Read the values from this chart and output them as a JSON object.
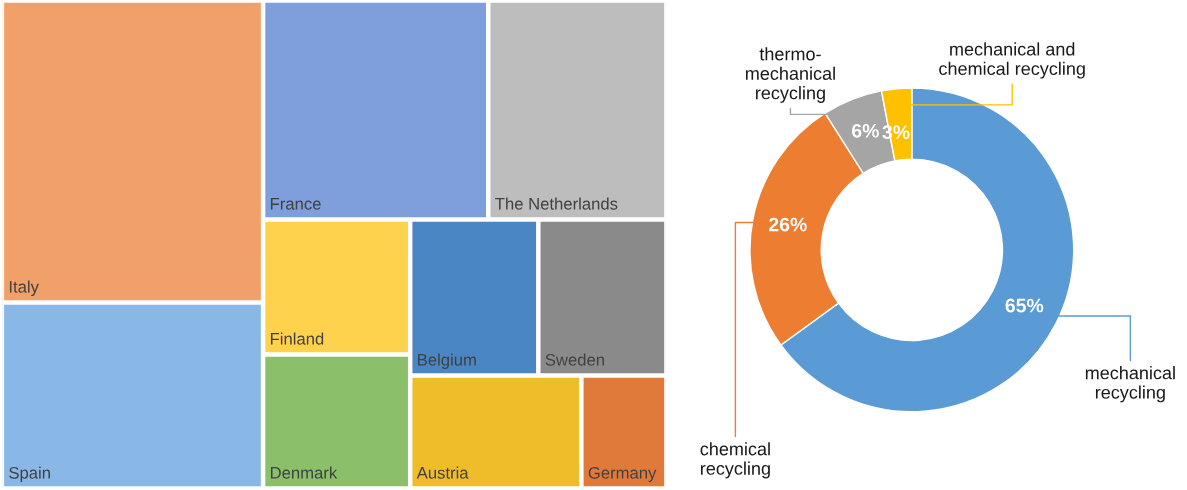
{
  "chart_data": [
    {
      "type": "other",
      "categories": [
        "Italy",
        "Spain",
        "France",
        "The Netherlands",
        "Finland",
        "Denmark",
        "Belgium",
        "Sweden",
        "Austria",
        "Germany"
      ],
      "colors": [
        "#f2a06a",
        "#8ab8e6",
        "#7f9fdc",
        "#bdbdbd",
        "#ffd24d",
        "#8cbf6a",
        "#4a86c4",
        "#8a8a8a",
        "#f0bd2a",
        "#e07a3a"
      ]
    },
    {
      "type": "donut",
      "categories": [
        "mechanical recycling",
        "chemical recycling",
        "thermo-mechanical recycling",
        "mechanical and chemical recycling"
      ],
      "values": [
        65,
        26,
        6,
        3
      ],
      "colors": [
        "#5b9bd5",
        "#ed7d31",
        "#a5a5a5",
        "#ffc000"
      ],
      "value_labels": [
        "65%",
        "26%",
        "6%",
        "3%"
      ]
    }
  ]
}
